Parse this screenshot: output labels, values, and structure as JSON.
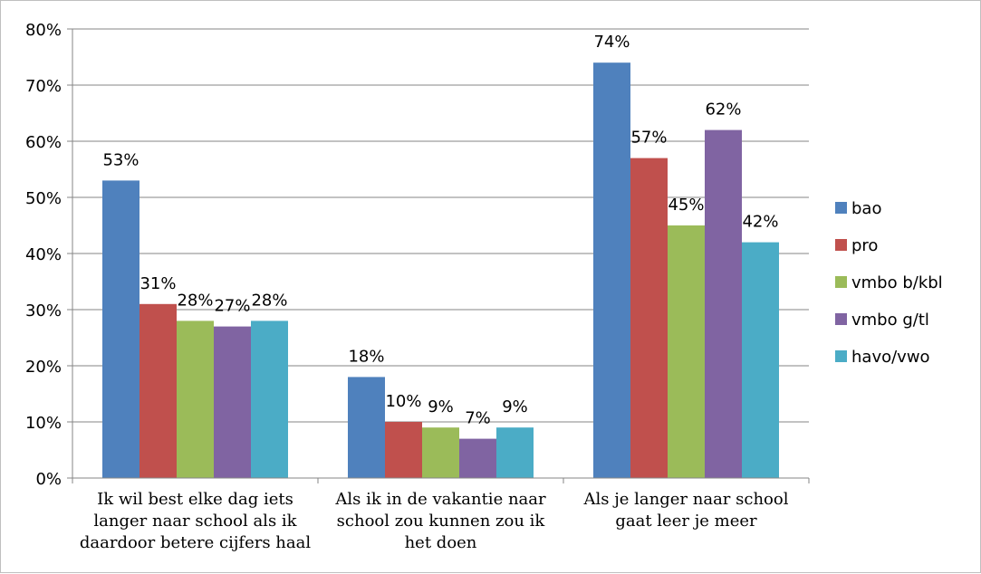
{
  "chart_data": {
    "type": "bar",
    "categories": [
      [
        "Ik wil best elke dag iets",
        "langer naar school als ik",
        "daardoor betere cijfers haal"
      ],
      [
        "Als ik in de vakantie naar",
        "school zou kunnen zou ik",
        "het doen"
      ],
      [
        "Als je langer naar school",
        "gaat leer je meer"
      ]
    ],
    "series": [
      {
        "name": "bao",
        "color": "#4f81bd",
        "values": [
          53,
          18,
          74
        ],
        "labels": [
          "53%",
          "18%",
          "74%"
        ]
      },
      {
        "name": "pro",
        "color": "#c0504d",
        "values": [
          31,
          10,
          57
        ],
        "labels": [
          "31%",
          "10%",
          "57%"
        ]
      },
      {
        "name": "vmbo b/kbl",
        "color": "#9bbb59",
        "values": [
          28,
          9,
          45
        ],
        "labels": [
          "28%",
          "9%",
          "45%"
        ]
      },
      {
        "name": "vmbo g/tl",
        "color": "#8064a2",
        "values": [
          27,
          7,
          62
        ],
        "labels": [
          "27%",
          "7%",
          "62%"
        ]
      },
      {
        "name": "havo/vwo",
        "color": "#4bacc6",
        "values": [
          28,
          9,
          42
        ],
        "labels": [
          "28%",
          "9%",
          "42%"
        ]
      }
    ],
    "ylim": [
      0,
      80
    ],
    "yticks": [
      "0%",
      "10%",
      "20%",
      "30%",
      "40%",
      "50%",
      "60%",
      "70%",
      "80%"
    ],
    "grid": true,
    "legend": "right"
  }
}
